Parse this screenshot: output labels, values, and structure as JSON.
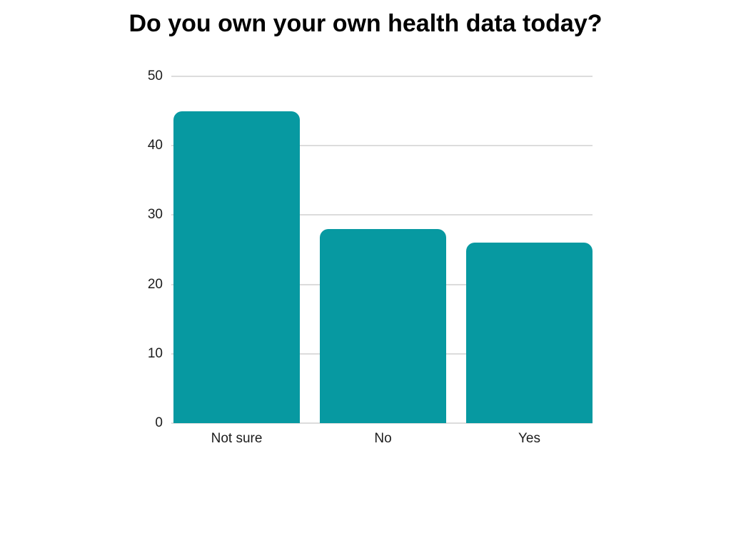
{
  "title": "Do you own your own health data today?",
  "chart_data": {
    "type": "bar",
    "title": "Do you own your own health data today?",
    "categories": [
      "Not sure",
      "No",
      "Yes"
    ],
    "values": [
      45,
      28,
      26
    ],
    "xlabel": "",
    "ylabel": "",
    "ylim": [
      0,
      50
    ],
    "yticks": [
      0,
      10,
      20,
      30,
      40,
      50
    ],
    "grid": true,
    "legend": false,
    "bar_color": "#0799a1",
    "gridline_color": "#dcdcdc",
    "text_color": "#1c1c1c",
    "background_color": "#ffffff"
  }
}
